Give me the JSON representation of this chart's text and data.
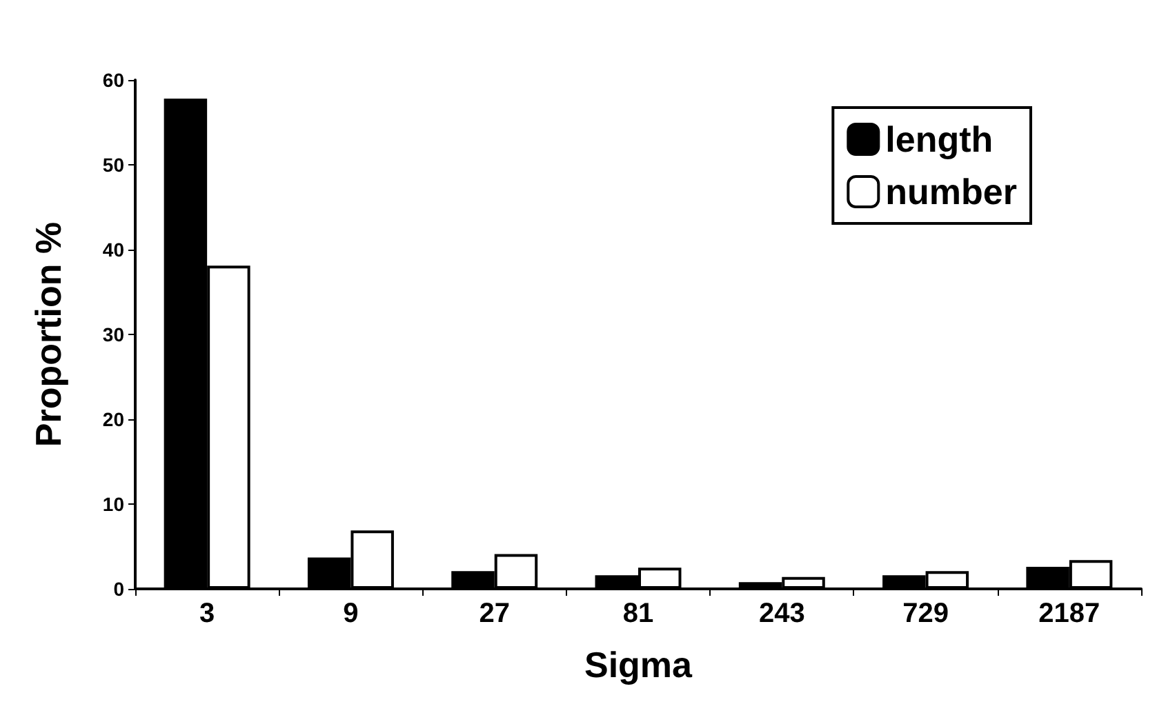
{
  "chart_data": {
    "type": "bar",
    "xlabel": "Sigma",
    "ylabel": "Proportion %",
    "categories": [
      "3",
      "9",
      "27",
      "81",
      "243",
      "729",
      "2187"
    ],
    "series": [
      {
        "name": "length",
        "color": "#000000",
        "values": [
          57.8,
          3.7,
          2.1,
          1.6,
          0.8,
          1.6,
          2.6
        ]
      },
      {
        "name": "number",
        "color": "#ffffff",
        "values": [
          38.1,
          6.9,
          4.1,
          2.5,
          1.4,
          2.1,
          3.4
        ]
      }
    ],
    "ylim": [
      0,
      60
    ],
    "yticks": [
      0,
      10,
      20,
      30,
      40,
      50,
      60
    ],
    "grid": false,
    "legend": "top right"
  }
}
